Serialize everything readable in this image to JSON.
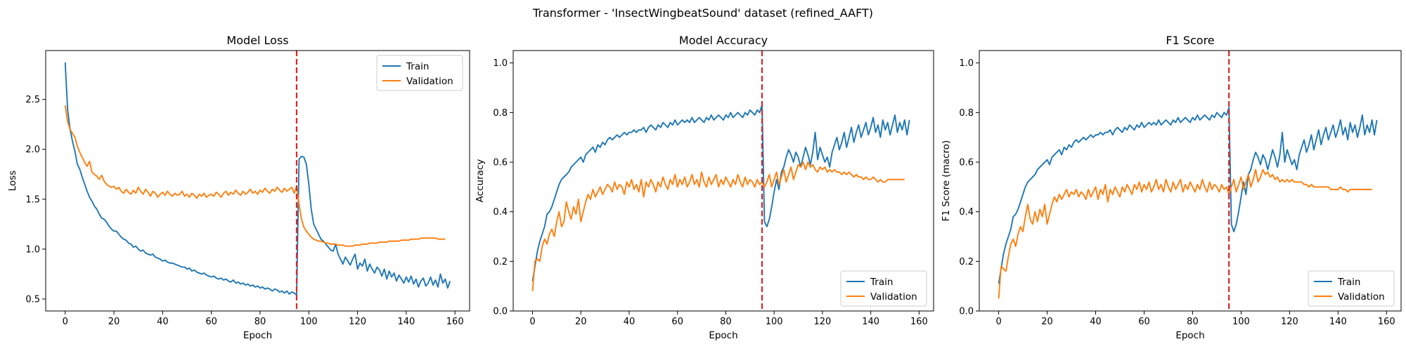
{
  "figure": {
    "suptitle": "Transformer - 'InsectWingbeatSound' dataset (refined_AAFT)",
    "colors": {
      "train": "#1f77b4",
      "validation": "#ff7f0e",
      "marker": "#d62728"
    }
  },
  "chart_data": [
    {
      "type": "line",
      "title": "Model Loss",
      "xlabel": "Epoch",
      "ylabel": "Loss",
      "xlim": [
        -8,
        166
      ],
      "ylim": [
        0.38,
        2.99
      ],
      "xticks": [
        0,
        20,
        40,
        60,
        80,
        100,
        120,
        140,
        160
      ],
      "yticks": [
        0.5,
        1.0,
        1.5,
        2.0,
        2.5
      ],
      "ytick_decimals": 1,
      "legend_position": "top-right",
      "vline_x": 95,
      "series": [
        {
          "name": "Train",
          "color": "#1f77b4",
          "x_start": 0,
          "values": [
            2.87,
            2.4,
            2.2,
            2.08,
            1.98,
            1.85,
            1.8,
            1.72,
            1.65,
            1.58,
            1.52,
            1.48,
            1.43,
            1.4,
            1.35,
            1.31,
            1.3,
            1.27,
            1.23,
            1.2,
            1.18,
            1.18,
            1.15,
            1.12,
            1.1,
            1.09,
            1.06,
            1.05,
            1.02,
            1.03,
            1.0,
            0.98,
            0.99,
            0.96,
            0.95,
            0.94,
            0.95,
            0.92,
            0.91,
            0.9,
            0.88,
            0.89,
            0.87,
            0.86,
            0.86,
            0.85,
            0.84,
            0.83,
            0.82,
            0.82,
            0.8,
            0.81,
            0.78,
            0.79,
            0.77,
            0.76,
            0.75,
            0.76,
            0.74,
            0.73,
            0.72,
            0.73,
            0.71,
            0.7,
            0.71,
            0.69,
            0.7,
            0.68,
            0.67,
            0.69,
            0.66,
            0.67,
            0.65,
            0.66,
            0.64,
            0.65,
            0.63,
            0.64,
            0.62,
            0.63,
            0.61,
            0.62,
            0.6,
            0.61,
            0.6,
            0.58,
            0.6,
            0.59,
            0.57,
            0.58,
            0.56,
            0.58,
            0.55,
            0.57,
            0.56,
            0.54,
            1.9,
            1.93,
            1.92,
            1.85,
            1.65,
            1.4,
            1.25,
            1.2,
            1.15,
            1.1,
            1.08,
            1.05,
            1.02,
            0.99,
            0.98,
            1.05,
            0.95,
            0.9,
            0.85,
            0.92,
            0.88,
            0.84,
            0.9,
            0.95,
            0.8,
            0.86,
            0.83,
            0.9,
            0.78,
            0.85,
            0.8,
            0.76,
            0.82,
            0.79,
            0.73,
            0.8,
            0.7,
            0.78,
            0.72,
            0.76,
            0.68,
            0.74,
            0.7,
            0.66,
            0.72,
            0.67,
            0.73,
            0.65,
            0.7,
            0.62,
            0.68,
            0.71,
            0.63,
            0.66,
            0.72,
            0.64,
            0.69,
            0.62,
            0.75,
            0.66,
            0.7,
            0.61,
            0.68
          ]
        },
        {
          "name": "Validation",
          "color": "#ff7f0e",
          "x_start": 0,
          "values": [
            2.44,
            2.28,
            2.2,
            2.16,
            2.12,
            2.03,
            1.97,
            1.92,
            1.87,
            1.83,
            1.88,
            1.77,
            1.75,
            1.73,
            1.7,
            1.74,
            1.68,
            1.65,
            1.63,
            1.62,
            1.63,
            1.6,
            1.62,
            1.58,
            1.56,
            1.6,
            1.57,
            1.55,
            1.59,
            1.56,
            1.62,
            1.58,
            1.55,
            1.6,
            1.57,
            1.53,
            1.58,
            1.56,
            1.52,
            1.55,
            1.57,
            1.54,
            1.58,
            1.55,
            1.53,
            1.56,
            1.54,
            1.55,
            1.58,
            1.53,
            1.55,
            1.52,
            1.56,
            1.54,
            1.51,
            1.55,
            1.53,
            1.56,
            1.52,
            1.54,
            1.55,
            1.53,
            1.57,
            1.55,
            1.52,
            1.56,
            1.58,
            1.54,
            1.57,
            1.55,
            1.59,
            1.56,
            1.54,
            1.58,
            1.55,
            1.57,
            1.6,
            1.56,
            1.58,
            1.55,
            1.59,
            1.57,
            1.61,
            1.58,
            1.56,
            1.6,
            1.58,
            1.62,
            1.59,
            1.57,
            1.61,
            1.58,
            1.6,
            1.62,
            1.56,
            1.63,
            1.45,
            1.3,
            1.22,
            1.18,
            1.15,
            1.12,
            1.1,
            1.09,
            1.08,
            1.08,
            1.07,
            1.06,
            1.06,
            1.05,
            1.05,
            1.05,
            1.04,
            1.04,
            1.04,
            1.03,
            1.03,
            1.03,
            1.03,
            1.04,
            1.04,
            1.04,
            1.05,
            1.05,
            1.05,
            1.06,
            1.06,
            1.06,
            1.06,
            1.07,
            1.07,
            1.07,
            1.07,
            1.08,
            1.08,
            1.08,
            1.08,
            1.08,
            1.09,
            1.09,
            1.09,
            1.09,
            1.1,
            1.1,
            1.1,
            1.1,
            1.11,
            1.11,
            1.11,
            1.11,
            1.11,
            1.11,
            1.11,
            1.1,
            1.1,
            1.1,
            1.1
          ]
        }
      ]
    },
    {
      "type": "line",
      "title": "Model Accuracy",
      "xlabel": "Epoch",
      "ylabel": "Accuracy",
      "xlim": [
        -8,
        166
      ],
      "ylim": [
        0.0,
        1.05
      ],
      "xticks": [
        0,
        20,
        40,
        60,
        80,
        100,
        120,
        140,
        160
      ],
      "yticks": [
        0.0,
        0.2,
        0.4,
        0.6,
        0.8,
        1.0
      ],
      "ytick_decimals": 1,
      "legend_position": "bottom-right",
      "vline_x": 95,
      "series": [
        {
          "name": "Train",
          "color": "#1f77b4",
          "x_start": 0,
          "values": [
            0.12,
            0.18,
            0.24,
            0.28,
            0.31,
            0.34,
            0.39,
            0.4,
            0.42,
            0.45,
            0.48,
            0.51,
            0.53,
            0.54,
            0.55,
            0.56,
            0.58,
            0.59,
            0.6,
            0.61,
            0.62,
            0.6,
            0.63,
            0.64,
            0.65,
            0.66,
            0.64,
            0.67,
            0.66,
            0.68,
            0.67,
            0.69,
            0.7,
            0.69,
            0.7,
            0.71,
            0.7,
            0.71,
            0.72,
            0.71,
            0.72,
            0.72,
            0.73,
            0.72,
            0.73,
            0.73,
            0.74,
            0.72,
            0.74,
            0.75,
            0.74,
            0.73,
            0.75,
            0.74,
            0.76,
            0.75,
            0.74,
            0.76,
            0.75,
            0.77,
            0.75,
            0.76,
            0.77,
            0.76,
            0.77,
            0.76,
            0.78,
            0.76,
            0.77,
            0.78,
            0.77,
            0.76,
            0.78,
            0.77,
            0.79,
            0.77,
            0.78,
            0.79,
            0.78,
            0.77,
            0.79,
            0.78,
            0.8,
            0.78,
            0.79,
            0.8,
            0.79,
            0.78,
            0.8,
            0.79,
            0.81,
            0.8,
            0.79,
            0.81,
            0.8,
            0.83,
            0.36,
            0.34,
            0.37,
            0.42,
            0.48,
            0.53,
            0.49,
            0.56,
            0.58,
            0.62,
            0.65,
            0.63,
            0.6,
            0.64,
            0.62,
            0.58,
            0.62,
            0.66,
            0.63,
            0.59,
            0.64,
            0.72,
            0.61,
            0.66,
            0.63,
            0.6,
            0.62,
            0.58,
            0.64,
            0.67,
            0.7,
            0.65,
            0.68,
            0.72,
            0.66,
            0.7,
            0.74,
            0.68,
            0.72,
            0.75,
            0.7,
            0.73,
            0.76,
            0.71,
            0.74,
            0.78,
            0.72,
            0.75,
            0.7,
            0.77,
            0.73,
            0.76,
            0.71,
            0.75,
            0.79,
            0.72,
            0.76,
            0.73,
            0.77,
            0.71,
            0.77
          ]
        },
        {
          "name": "Validation",
          "color": "#ff7f0e",
          "x_start": 0,
          "values": [
            0.08,
            0.2,
            0.21,
            0.2,
            0.26,
            0.29,
            0.27,
            0.31,
            0.33,
            0.3,
            0.36,
            0.4,
            0.34,
            0.36,
            0.44,
            0.4,
            0.37,
            0.42,
            0.39,
            0.45,
            0.36,
            0.4,
            0.44,
            0.47,
            0.45,
            0.49,
            0.46,
            0.48,
            0.5,
            0.47,
            0.49,
            0.51,
            0.5,
            0.48,
            0.52,
            0.49,
            0.51,
            0.5,
            0.47,
            0.52,
            0.5,
            0.53,
            0.49,
            0.51,
            0.48,
            0.53,
            0.46,
            0.52,
            0.5,
            0.53,
            0.51,
            0.48,
            0.52,
            0.5,
            0.54,
            0.51,
            0.49,
            0.53,
            0.51,
            0.55,
            0.5,
            0.53,
            0.51,
            0.54,
            0.5,
            0.52,
            0.55,
            0.51,
            0.53,
            0.5,
            0.56,
            0.52,
            0.5,
            0.54,
            0.51,
            0.53,
            0.55,
            0.5,
            0.53,
            0.51,
            0.54,
            0.52,
            0.5,
            0.53,
            0.51,
            0.55,
            0.52,
            0.5,
            0.54,
            0.51,
            0.53,
            0.52,
            0.5,
            0.53,
            0.51,
            0.52,
            0.5,
            0.52,
            0.55,
            0.5,
            0.53,
            0.56,
            0.51,
            0.54,
            0.57,
            0.52,
            0.55,
            0.58,
            0.53,
            0.56,
            0.59,
            0.58,
            0.6,
            0.57,
            0.6,
            0.58,
            0.59,
            0.57,
            0.56,
            0.58,
            0.57,
            0.58,
            0.56,
            0.57,
            0.56,
            0.57,
            0.56,
            0.56,
            0.55,
            0.56,
            0.55,
            0.56,
            0.55,
            0.54,
            0.55,
            0.54,
            0.54,
            0.53,
            0.54,
            0.53,
            0.53,
            0.54,
            0.53,
            0.52,
            0.53,
            0.52,
            0.52,
            0.53,
            0.53,
            0.53,
            0.53,
            0.53,
            0.53,
            0.53,
            0.53
          ]
        }
      ]
    },
    {
      "type": "line",
      "title": "F1 Score",
      "xlabel": "Epoch",
      "ylabel": "F1 Score (macro)",
      "xlim": [
        -8,
        166
      ],
      "ylim": [
        0.0,
        1.05
      ],
      "xticks": [
        0,
        20,
        40,
        60,
        80,
        100,
        120,
        140,
        160
      ],
      "yticks": [
        0.0,
        0.2,
        0.4,
        0.6,
        0.8,
        1.0
      ],
      "ytick_decimals": 1,
      "legend_position": "bottom-right",
      "vline_x": 95,
      "series": [
        {
          "name": "Train",
          "color": "#1f77b4",
          "x_start": 0,
          "values": [
            0.11,
            0.17,
            0.23,
            0.27,
            0.3,
            0.33,
            0.38,
            0.39,
            0.41,
            0.44,
            0.47,
            0.5,
            0.52,
            0.53,
            0.54,
            0.55,
            0.57,
            0.58,
            0.59,
            0.6,
            0.61,
            0.59,
            0.62,
            0.63,
            0.64,
            0.65,
            0.63,
            0.66,
            0.65,
            0.67,
            0.66,
            0.68,
            0.69,
            0.68,
            0.69,
            0.7,
            0.69,
            0.7,
            0.71,
            0.7,
            0.71,
            0.71,
            0.72,
            0.71,
            0.72,
            0.72,
            0.73,
            0.71,
            0.73,
            0.74,
            0.73,
            0.72,
            0.74,
            0.73,
            0.75,
            0.74,
            0.73,
            0.75,
            0.74,
            0.76,
            0.74,
            0.75,
            0.76,
            0.75,
            0.76,
            0.75,
            0.77,
            0.75,
            0.76,
            0.77,
            0.76,
            0.75,
            0.77,
            0.76,
            0.78,
            0.76,
            0.77,
            0.78,
            0.77,
            0.76,
            0.78,
            0.77,
            0.79,
            0.77,
            0.78,
            0.79,
            0.78,
            0.77,
            0.79,
            0.78,
            0.8,
            0.79,
            0.78,
            0.8,
            0.79,
            0.82,
            0.35,
            0.32,
            0.35,
            0.4,
            0.46,
            0.52,
            0.47,
            0.55,
            0.57,
            0.61,
            0.64,
            0.62,
            0.59,
            0.63,
            0.61,
            0.57,
            0.61,
            0.65,
            0.62,
            0.58,
            0.63,
            0.72,
            0.6,
            0.65,
            0.62,
            0.59,
            0.61,
            0.57,
            0.63,
            0.66,
            0.69,
            0.64,
            0.67,
            0.71,
            0.65,
            0.69,
            0.73,
            0.67,
            0.71,
            0.74,
            0.69,
            0.72,
            0.75,
            0.7,
            0.73,
            0.77,
            0.71,
            0.74,
            0.69,
            0.76,
            0.72,
            0.75,
            0.7,
            0.74,
            0.79,
            0.71,
            0.75,
            0.72,
            0.77,
            0.71,
            0.77
          ]
        },
        {
          "name": "Validation",
          "color": "#ff7f0e",
          "x_start": 0,
          "values": [
            0.05,
            0.18,
            0.17,
            0.16,
            0.22,
            0.27,
            0.29,
            0.26,
            0.31,
            0.34,
            0.32,
            0.38,
            0.43,
            0.37,
            0.35,
            0.4,
            0.36,
            0.41,
            0.38,
            0.43,
            0.35,
            0.39,
            0.43,
            0.46,
            0.44,
            0.47,
            0.45,
            0.47,
            0.49,
            0.46,
            0.48,
            0.47,
            0.49,
            0.46,
            0.48,
            0.47,
            0.45,
            0.49,
            0.46,
            0.48,
            0.5,
            0.45,
            0.49,
            0.47,
            0.51,
            0.44,
            0.49,
            0.47,
            0.5,
            0.48,
            0.46,
            0.5,
            0.48,
            0.51,
            0.49,
            0.47,
            0.51,
            0.49,
            0.52,
            0.48,
            0.51,
            0.49,
            0.52,
            0.48,
            0.5,
            0.53,
            0.49,
            0.51,
            0.48,
            0.53,
            0.5,
            0.48,
            0.52,
            0.49,
            0.51,
            0.53,
            0.48,
            0.51,
            0.49,
            0.52,
            0.5,
            0.48,
            0.51,
            0.49,
            0.53,
            0.5,
            0.48,
            0.52,
            0.49,
            0.51,
            0.5,
            0.48,
            0.51,
            0.49,
            0.5,
            0.47,
            0.5,
            0.53,
            0.48,
            0.51,
            0.54,
            0.49,
            0.52,
            0.55,
            0.5,
            0.53,
            0.57,
            0.52,
            0.54,
            0.57,
            0.55,
            0.56,
            0.54,
            0.55,
            0.53,
            0.54,
            0.52,
            0.53,
            0.52,
            0.53,
            0.52,
            0.53,
            0.52,
            0.52,
            0.52,
            0.52,
            0.51,
            0.51,
            0.5,
            0.51,
            0.5,
            0.5,
            0.5,
            0.5,
            0.5,
            0.5,
            0.5,
            0.49,
            0.49,
            0.49,
            0.49,
            0.5,
            0.49,
            0.49,
            0.48,
            0.49,
            0.49,
            0.49,
            0.49,
            0.49,
            0.49,
            0.49,
            0.49,
            0.49,
            0.49
          ]
        }
      ]
    }
  ]
}
